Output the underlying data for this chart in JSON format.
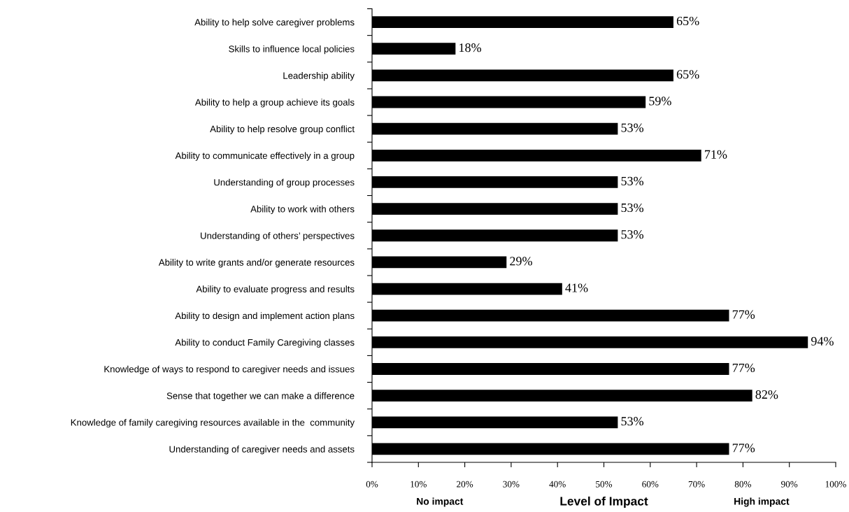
{
  "chart_data": {
    "type": "bar",
    "orientation": "horizontal",
    "xlabel": "Level of Impact",
    "annotations": [
      "No impact",
      "High impact"
    ],
    "categories": [
      "Ability to help solve caregiver problems",
      "Skills to influence local policies",
      "Leadership ability",
      "Ability to help a group achieve its goals",
      "Ability to help resolve group conflict",
      "Ability to communicate effectively in a group",
      "Understanding of group processes",
      "Ability to work with others",
      "Understanding of others’ perspectives",
      "Ability to write grants and/or generate resources",
      "Ability to evaluate progress and results",
      "Ability to design and implement action plans",
      "Ability to conduct Family Caregiving classes",
      "Knowledge of ways to respond to caregiver needs and issues",
      "Sense that together we can make a difference",
      "Knowledge of family caregiving resources available in the  community",
      "Understanding of caregiver needs and assets"
    ],
    "values": [
      65,
      18,
      65,
      59,
      53,
      71,
      53,
      53,
      53,
      29,
      41,
      77,
      94,
      77,
      82,
      53,
      77
    ],
    "value_labels": [
      "65%",
      "18%",
      "65%",
      "59%",
      "53%",
      "71%",
      "53%",
      "53%",
      "53%",
      "29%",
      "41%",
      "77%",
      "94%",
      "77%",
      "82%",
      "53%",
      "77%"
    ],
    "color": "#000000",
    "xlim": [
      0,
      100
    ],
    "xticks": [
      {
        "value": 0,
        "label": "0%"
      },
      {
        "value": 10,
        "label": "10%"
      },
      {
        "value": 20,
        "label": "20%"
      },
      {
        "value": 30,
        "label": "30%"
      },
      {
        "value": 40,
        "label": "40%"
      },
      {
        "value": 50,
        "label": "50%"
      },
      {
        "value": 60,
        "label": "60%"
      },
      {
        "value": 70,
        "label": "70%"
      },
      {
        "value": 80,
        "label": "80%"
      },
      {
        "value": 90,
        "label": "90%"
      },
      {
        "value": 100,
        "label": "100%"
      }
    ],
    "grid": false
  }
}
